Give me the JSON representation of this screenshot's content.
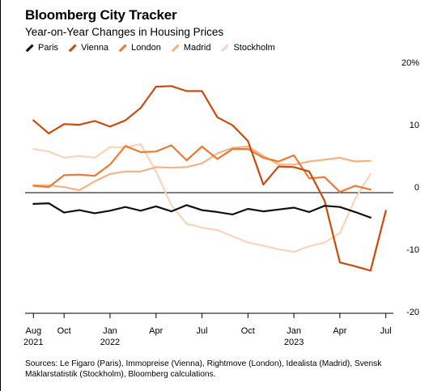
{
  "header": {
    "title": "Bloomberg City Tracker",
    "subtitle": "Year-on-Year Changes in Housing Prices"
  },
  "colors": {
    "Paris": "#111111",
    "Vienna": "#cc4a0c",
    "London": "#ec7a33",
    "Madrid": "#f5b282",
    "Stockholm": "#fbd4b8"
  },
  "chart_data": {
    "type": "line",
    "xlabel": "",
    "ylabel": "",
    "ylim": [
      -20,
      20
    ],
    "y_ticks": [
      {
        "value": 20,
        "label": "20%"
      },
      {
        "value": 10,
        "label": "10"
      },
      {
        "value": 0,
        "label": "0"
      },
      {
        "value": -10,
        "label": "-10"
      },
      {
        "value": -20,
        "label": "-20"
      }
    ],
    "grid": false,
    "x_ticks": [
      {
        "month": "2021-08",
        "label": "Aug",
        "year": "2021"
      },
      {
        "month": "2021-10",
        "label": "Oct",
        "year": ""
      },
      {
        "month": "2022-01",
        "label": "Jan",
        "year": "2022"
      },
      {
        "month": "2022-04",
        "label": "Apr",
        "year": ""
      },
      {
        "month": "2022-07",
        "label": "Jul",
        "year": ""
      },
      {
        "month": "2022-10",
        "label": "Oct",
        "year": ""
      },
      {
        "month": "2023-01",
        "label": "Jan",
        "year": "2023"
      },
      {
        "month": "2023-04",
        "label": "Apr",
        "year": ""
      },
      {
        "month": "2023-07",
        "label": "Jul",
        "year": ""
      }
    ],
    "x": [
      "2021-08",
      "2021-09",
      "2021-10",
      "2021-11",
      "2021-12",
      "2022-01",
      "2022-02",
      "2022-03",
      "2022-04",
      "2022-05",
      "2022-06",
      "2022-07",
      "2022-08",
      "2022-09",
      "2022-10",
      "2022-11",
      "2022-12",
      "2023-01",
      "2023-02",
      "2023-03",
      "2023-04",
      "2023-05",
      "2023-06",
      "2023-07"
    ],
    "series": [
      {
        "name": "Paris",
        "values": [
          -1.8,
          -1.7,
          -3.2,
          -2.8,
          -3.3,
          -2.9,
          -2.3,
          -2.9,
          -2.2,
          -3.0,
          -2.0,
          -2.8,
          -3.1,
          -3.5,
          -2.6,
          -3.0,
          -2.7,
          -2.4,
          -3.1,
          -2.1,
          -2.3,
          -3.1,
          -4.0,
          null
        ]
      },
      {
        "name": "Vienna",
        "values": [
          11.6,
          9.5,
          11.0,
          10.9,
          11.5,
          10.6,
          11.6,
          13.6,
          17.0,
          17.1,
          16.3,
          16.3,
          12.1,
          10.8,
          8.3,
          1.3,
          4.2,
          4.1,
          3.4,
          -1.3,
          -11.2,
          -11.8,
          -12.5,
          -2.9
        ]
      },
      {
        "name": "London",
        "values": [
          1.1,
          0.9,
          2.8,
          2.9,
          2.7,
          4.5,
          7.5,
          6.5,
          6.6,
          7.6,
          5.2,
          7.4,
          5.4,
          7.0,
          7.0,
          5.6,
          5.0,
          6.0,
          2.3,
          2.5,
          0.1,
          1.1,
          0.5,
          null
        ]
      },
      {
        "name": "Madrid",
        "values": [
          1.2,
          1.2,
          0.9,
          0.4,
          1.8,
          3.0,
          3.4,
          3.4,
          4.1,
          4.0,
          4.1,
          4.7,
          6.3,
          7.2,
          7.4,
          5.9,
          4.5,
          4.5,
          5.0,
          5.3,
          5.6,
          5.0,
          5.1,
          null
        ]
      },
      {
        "name": "Stockholm",
        "values": [
          7.0,
          6.6,
          5.6,
          5.9,
          5.6,
          7.3,
          7.3,
          7.8,
          3.4,
          -2.0,
          -5.0,
          -5.6,
          -6.0,
          -7.0,
          -8.0,
          -8.5,
          -9.1,
          -9.5,
          -8.6,
          -8.0,
          -6.5,
          -1.0,
          3.0,
          null
        ]
      }
    ]
  },
  "source": "Sources: Le Figaro (Paris), Immopreise (Vienna), Rightmove (London), Idealista (Madrid), Svensk Mäklarstatistik (Stockholm), Bloomberg calculations."
}
